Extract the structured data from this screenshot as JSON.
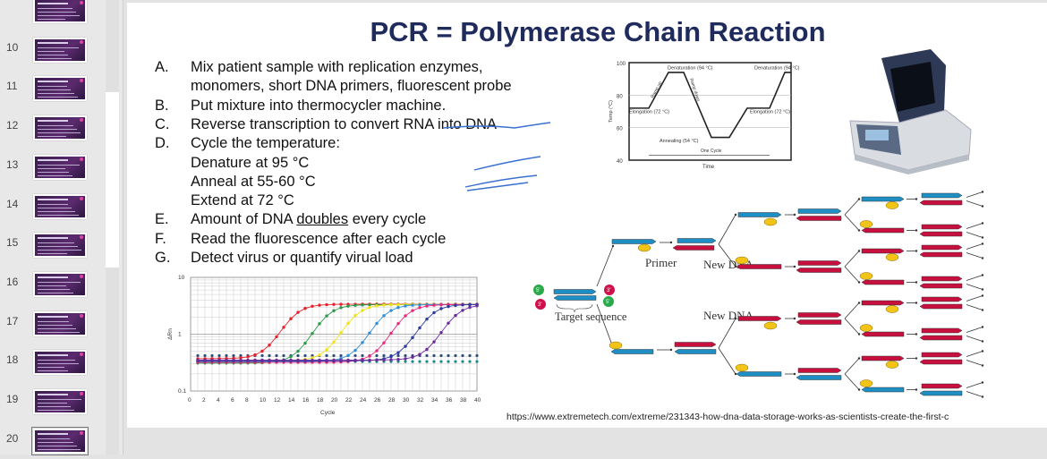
{
  "slide_panel": {
    "thumbnails": [
      {
        "number": ""
      },
      {
        "number": "10"
      },
      {
        "number": "11"
      },
      {
        "number": "12"
      },
      {
        "number": "13"
      },
      {
        "number": "14"
      },
      {
        "number": "15"
      },
      {
        "number": "16"
      },
      {
        "number": "17"
      },
      {
        "number": "18"
      },
      {
        "number": "19"
      },
      {
        "number": "20"
      }
    ],
    "selected": "20"
  },
  "slide": {
    "title": "PCR = Polymerase Chain Reaction",
    "items": [
      {
        "key": "A.",
        "text": "Mix patient sample with replication enzymes,"
      },
      {
        "key": "",
        "text": "monomers, short DNA primers, fluorescent probe"
      },
      {
        "key": "B.",
        "text": "Put mixture into thermocycler machine."
      },
      {
        "key": "C.",
        "text": "Reverse transcription to convert RNA into DNA"
      },
      {
        "key": "D.",
        "text": "Cycle the temperature:"
      },
      {
        "key": "",
        "text": "Denature at 95 °C"
      },
      {
        "key": "",
        "text": "Anneal at 55-60 °C"
      },
      {
        "key": "",
        "text": "Extend at 72 °C"
      },
      {
        "key": "E.",
        "text_before": "Amount of DNA ",
        "underlined": "doubles",
        "text_after": " every cycle"
      },
      {
        "key": "F.",
        "text": "Read the fluorescence after each cycle"
      },
      {
        "key": "G.",
        "text": "Detect virus or quantify virual load"
      }
    ],
    "source_url": "https://www.extremetech.com/extreme/231343-how-dna-data-storage-works-as-scientists-create-the-first-c",
    "temp_chart": {
      "ylabel": "Temp (°C)",
      "xlabel": "Time",
      "yticks": [
        "100",
        "80",
        "60",
        "40"
      ],
      "labels": [
        "Denaturation (94 °C)",
        "Denaturation (94 °C)",
        "Elongation (72 °C)",
        "Elongation (72 °C)",
        "Annealing (54 °C)",
        "Ramp up",
        "Ramp down",
        "One Cycle"
      ]
    },
    "qpcr_chart": {
      "ylabel": "ΔRn",
      "xlabel": "Cycle",
      "yticks": [
        "10",
        "1",
        "0.1"
      ],
      "xticks": [
        "0",
        "2",
        "4",
        "6",
        "8",
        "10",
        "12",
        "14",
        "16",
        "18",
        "20",
        "22",
        "24",
        "26",
        "28",
        "30",
        "32",
        "34",
        "36",
        "38",
        "40"
      ],
      "colors": [
        "#e8202a",
        "#2a9a4a",
        "#f2e018",
        "#2f8fd8",
        "#e8287a",
        "#2a3aa0",
        "#6a2a9e"
      ],
      "midpoints": [
        14,
        18.5,
        22.5,
        26.5,
        29.5,
        33,
        36.5
      ]
    },
    "dna_diagram": {
      "labels": {
        "primer": "Primer",
        "new_dna": "New DNA",
        "new_dna_2": "New DNA",
        "target": "Target sequence"
      },
      "ends": [
        "5'",
        "3'",
        "3'",
        "5'"
      ],
      "colors": {
        "template": "#1e8fc4",
        "new": "#c8103e",
        "primer": "#f2c418"
      }
    }
  }
}
